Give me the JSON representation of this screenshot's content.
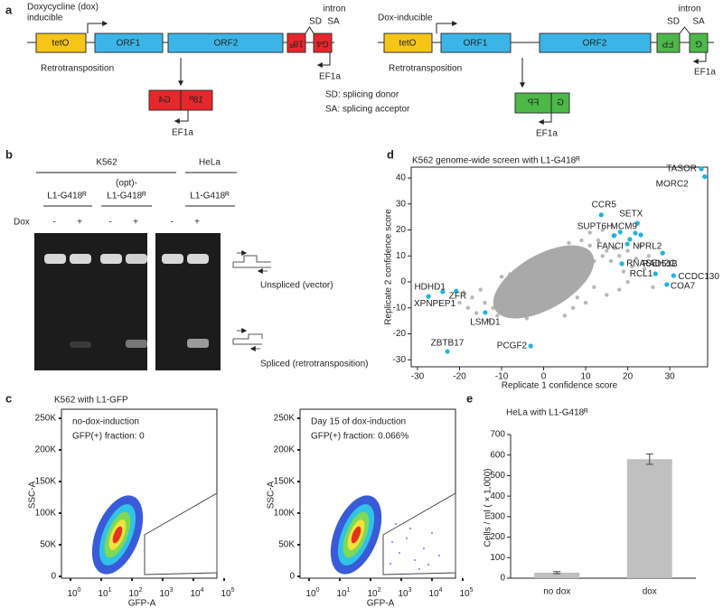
{
  "panel_a": {
    "label": "a",
    "left": {
      "promoter": [
        "Doxycycline (dox)",
        "inducible"
      ],
      "boxes": [
        "tetO",
        "ORF1",
        "ORF2",
        "18ᴿ",
        "G4"
      ],
      "intron": "intron",
      "sd": "SD",
      "sa": "SA",
      "ef1a": "EF1a",
      "step": "Retrotransposition",
      "product": [
        "G4",
        "18ᴿ"
      ],
      "product_ef1a": "EF1a"
    },
    "right": {
      "promoter": "Dox-inducible",
      "boxes": [
        "tetO",
        "ORF1",
        "ORF2",
        "FP",
        "G"
      ],
      "intron": "intron",
      "sd": "SD",
      "sa": "SA",
      "ef1a": "EF1a",
      "step": "Retrotransposition",
      "product": [
        "FP",
        "G"
      ],
      "product_ef1a": "EF1a"
    },
    "legend": [
      "SD: splicing donor",
      "SA: splicing acceptor"
    ]
  },
  "panel_b": {
    "label": "b",
    "groups": [
      "K562",
      "HeLa"
    ],
    "constructs": [
      "L1-G418ᴿ",
      "(opt)-",
      "L1-G418ᴿ",
      "L1-G418ᴿ"
    ],
    "dox": "Dox",
    "lanes": [
      "-",
      "+",
      "-",
      "+",
      "-",
      "+"
    ],
    "bands": [
      "Unspliced (vector)",
      "Spliced (retrotransposition)"
    ]
  },
  "panel_c": {
    "label": "c",
    "title": "K562 with L1-GFP",
    "plots": [
      {
        "lines": [
          "no-dox-induction",
          "GFP(+) fraction: 0"
        ]
      },
      {
        "lines": [
          "Day 15 of dox-induction",
          "GFP(+) fraction: 0.066%"
        ]
      }
    ],
    "yticks": [
      "250K",
      "200K",
      "150K",
      "100K",
      "50K",
      "0"
    ],
    "xtick_base": "10",
    "xtick_exps": [
      "0",
      "1",
      "2",
      "3",
      "4",
      "5"
    ],
    "ylabel": "SSC-A",
    "xlabel": "GFP-A"
  },
  "panel_d": {
    "label": "d"
  },
  "panel_e": {
    "label": "e"
  },
  "chart_data": [
    {
      "type": "scatter",
      "title": "K562 genome-wide screen with L1-G418ᴿ",
      "xlabel": "Replicate 1 confidence score",
      "ylabel": "Replicate 2 confidence score",
      "xlim": [
        -31.5,
        39
      ],
      "ylim": [
        -32.7,
        44.2
      ],
      "xticks": [
        -30,
        -20,
        -10,
        0,
        10,
        20,
        30
      ],
      "yticks": [
        -30,
        -20,
        -10,
        0,
        10,
        20,
        30,
        40
      ],
      "series": [
        {
          "color": "#a8a8a8",
          "x": [
            0,
            2,
            -2,
            4,
            -4,
            6,
            -6,
            8,
            -8,
            10,
            -10,
            3,
            -3,
            5,
            -5,
            7,
            -7,
            9,
            -9,
            12,
            -12,
            1,
            -1,
            11,
            -11,
            14,
            13,
            15,
            16,
            -14,
            -13,
            17,
            18,
            20,
            22,
            19,
            21,
            24,
            20,
            18,
            15,
            12,
            -15,
            -17,
            -18,
            -16,
            6,
            4,
            2,
            -2,
            8,
            10,
            -6,
            -8,
            0,
            -3,
            3,
            25,
            23,
            14,
            11,
            -19,
            -20,
            7,
            5,
            -10,
            26,
            17,
            9,
            -4
          ],
          "values": [
            0,
            3,
            -3,
            5,
            -4,
            7,
            -6,
            9,
            -7,
            11,
            -9,
            -2,
            2,
            1,
            -1,
            3,
            -3,
            5,
            -6,
            8,
            -10,
            6,
            -6,
            14,
            -13,
            10,
            16,
            12,
            8,
            -8,
            -15,
            13,
            10,
            12,
            9,
            4,
            6,
            5,
            0,
            -3,
            -5,
            -2,
            -3,
            -6,
            -10,
            -12,
            15,
            12,
            10,
            8,
            -6,
            -8,
            4,
            3,
            -10,
            -12,
            -8,
            10,
            14,
            20,
            19,
            -4,
            -8,
            -10,
            -13,
            2,
            -2,
            18,
            16,
            -14
          ]
        },
        {
          "color": "#1fb3e0",
          "x": [
            37.5,
            38.3,
            13.7,
            22.3,
            18.2,
            21.8,
            23.1,
            20.5,
            16.7,
            19.9,
            28.3,
            18.6,
            26.6,
            30.9,
            29.3,
            -24,
            -20.8,
            -27.4,
            -13.9,
            -3.1,
            -22.9
          ],
          "values": [
            43.5,
            40.5,
            25.8,
            22.6,
            19.2,
            18.8,
            18.1,
            16.4,
            17.8,
            14.6,
            11.1,
            7,
            3.1,
            2.4,
            -1,
            -3.8,
            -3.5,
            -5.6,
            -11.8,
            -24.7,
            -26.8
          ],
          "labels": [
            "TASOR",
            "MORC2",
            "CCR5",
            "SETX",
            "SUPT6H",
            "MCM9",
            null,
            null,
            "FANCI",
            "NPRL2",
            "RAD51B",
            "RNASEH2C",
            "RCL1",
            "CCDC130",
            "COA7",
            "HDHD1",
            "ZFR",
            "XPNPEP1",
            "LSMD1",
            "PCGF2",
            "ZBTB17"
          ]
        }
      ]
    },
    {
      "type": "bar",
      "title": "HeLa with L1-G418ᴿ",
      "ylabel": "Cells / ml ( × 1,000)",
      "categories": [
        "no dox",
        "dox"
      ],
      "values": [
        27,
        580
      ],
      "errors": [
        5,
        25
      ],
      "color": "#c0c0c0",
      "ylim": [
        0,
        700
      ],
      "yticks": [
        0,
        100,
        200,
        300,
        400,
        500,
        600,
        700
      ]
    }
  ]
}
